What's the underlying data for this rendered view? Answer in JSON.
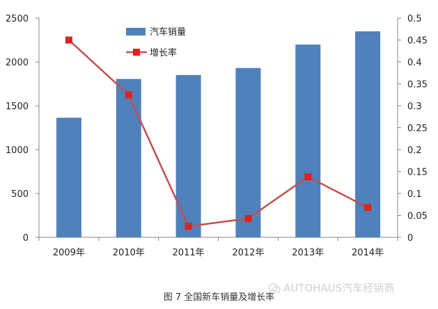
{
  "chart_data": {
    "type": "bar+line",
    "categories": [
      "2009年",
      "2010年",
      "2011年",
      "2012年",
      "2013年",
      "2014年"
    ],
    "series": [
      {
        "name": "汽车销量",
        "type": "bar",
        "axis": "left",
        "values": [
          1364,
          1806,
          1851,
          1931,
          2198,
          2349
        ],
        "color": "#4f81bd"
      },
      {
        "name": "增长率",
        "type": "line",
        "axis": "right",
        "values": [
          0.45,
          0.325,
          0.025,
          0.043,
          0.138,
          0.068
        ],
        "color": "#c0504d",
        "marker_color": "#e0211c"
      }
    ],
    "y_left": {
      "min": 0,
      "max": 2500,
      "ticks": [
        "0",
        "500",
        "1000",
        "1500",
        "2000",
        "2500"
      ]
    },
    "y_right": {
      "min": 0,
      "max": 0.5,
      "ticks": [
        "0",
        "0.05",
        "0.1",
        "0.15",
        "0.2",
        "0.25",
        "0.3",
        "0.35",
        "0.4",
        "0.45",
        "0.5"
      ]
    },
    "grid": false,
    "legend_position": "top-center"
  },
  "caption": "图 7  全国新车销量及增长率",
  "watermark": "AUTOHAUS汽车经销商"
}
